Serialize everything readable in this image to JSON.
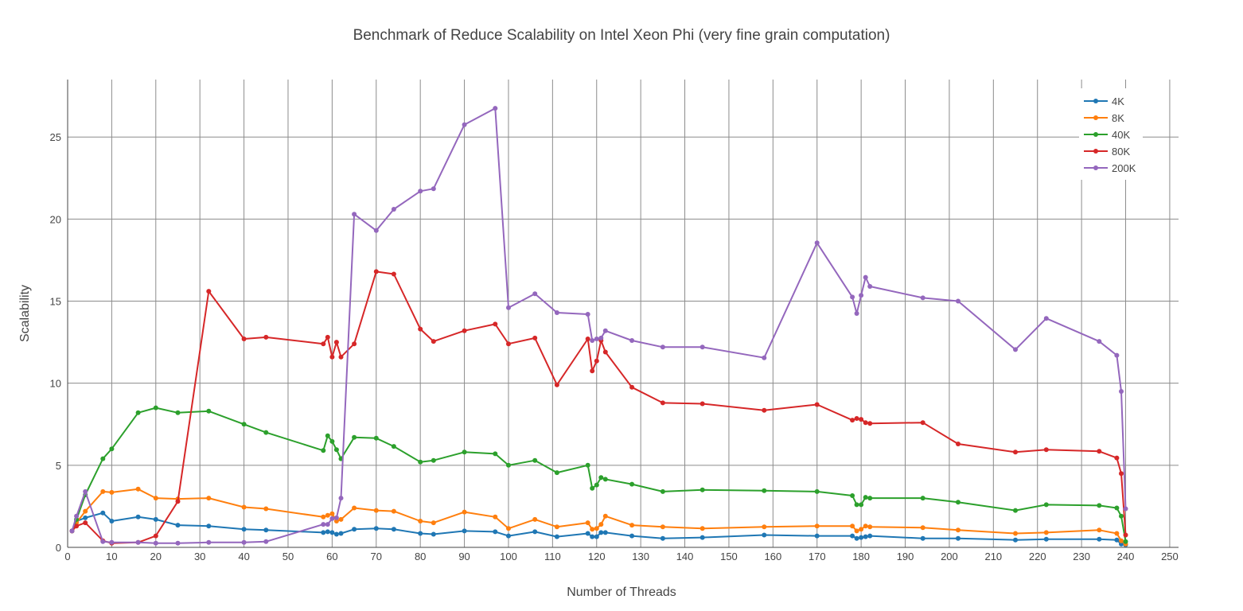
{
  "chart_data": {
    "type": "line",
    "title": "Benchmark of Reduce Scalability on Intel Xeon Phi (very fine grain computation)",
    "xlabel": "Number of Threads",
    "ylabel": "Scalability",
    "xlim": [
      0,
      252
    ],
    "ylim": [
      0,
      28.5
    ],
    "xticks": [
      0,
      10,
      20,
      30,
      40,
      50,
      60,
      70,
      80,
      90,
      100,
      110,
      120,
      130,
      140,
      150,
      160,
      170,
      180,
      190,
      200,
      210,
      220,
      230,
      240,
      250
    ],
    "yticks": [
      0,
      5,
      10,
      15,
      20,
      25
    ],
    "grid": true,
    "legend_position": "top-right",
    "series": [
      {
        "name": "4K",
        "color": "#1f77b4",
        "points": [
          [
            1,
            1
          ],
          [
            2,
            1.6
          ],
          [
            4,
            1.8
          ],
          [
            8,
            2.1
          ],
          [
            10,
            1.6
          ],
          [
            16,
            1.85
          ],
          [
            20,
            1.7
          ],
          [
            25,
            1.35
          ],
          [
            32,
            1.3
          ],
          [
            40,
            1.1
          ],
          [
            45,
            1.05
          ],
          [
            58,
            0.9
          ],
          [
            59,
            0.95
          ],
          [
            60,
            0.9
          ],
          [
            61,
            0.8
          ],
          [
            62,
            0.85
          ],
          [
            65,
            1.1
          ],
          [
            70,
            1.15
          ],
          [
            74,
            1.1
          ],
          [
            80,
            0.85
          ],
          [
            83,
            0.8
          ],
          [
            90,
            1.0
          ],
          [
            97,
            0.95
          ],
          [
            100,
            0.7
          ],
          [
            106,
            0.95
          ],
          [
            111,
            0.65
          ],
          [
            118,
            0.85
          ],
          [
            119,
            0.65
          ],
          [
            120,
            0.65
          ],
          [
            121,
            0.9
          ],
          [
            122,
            0.9
          ],
          [
            128,
            0.7
          ],
          [
            135,
            0.55
          ],
          [
            144,
            0.6
          ],
          [
            158,
            0.75
          ],
          [
            170,
            0.7
          ],
          [
            178,
            0.7
          ],
          [
            179,
            0.55
          ],
          [
            180,
            0.6
          ],
          [
            181,
            0.65
          ],
          [
            182,
            0.7
          ],
          [
            194,
            0.55
          ],
          [
            202,
            0.55
          ],
          [
            215,
            0.45
          ],
          [
            222,
            0.5
          ],
          [
            234,
            0.5
          ],
          [
            238,
            0.45
          ],
          [
            239,
            0.2
          ],
          [
            240,
            0.15
          ]
        ]
      },
      {
        "name": "8K",
        "color": "#ff7f0e",
        "points": [
          [
            1,
            1
          ],
          [
            2,
            1.5
          ],
          [
            4,
            2.2
          ],
          [
            8,
            3.4
          ],
          [
            10,
            3.35
          ],
          [
            16,
            3.55
          ],
          [
            20,
            3.0
          ],
          [
            25,
            2.95
          ],
          [
            32,
            3.0
          ],
          [
            40,
            2.45
          ],
          [
            45,
            2.35
          ],
          [
            58,
            1.85
          ],
          [
            59,
            1.95
          ],
          [
            60,
            2.05
          ],
          [
            61,
            1.6
          ],
          [
            62,
            1.7
          ],
          [
            65,
            2.4
          ],
          [
            70,
            2.25
          ],
          [
            74,
            2.2
          ],
          [
            80,
            1.6
          ],
          [
            83,
            1.5
          ],
          [
            90,
            2.15
          ],
          [
            97,
            1.85
          ],
          [
            100,
            1.15
          ],
          [
            106,
            1.7
          ],
          [
            111,
            1.25
          ],
          [
            118,
            1.5
          ],
          [
            119,
            1.1
          ],
          [
            120,
            1.15
          ],
          [
            121,
            1.4
          ],
          [
            122,
            1.9
          ],
          [
            128,
            1.35
          ],
          [
            135,
            1.25
          ],
          [
            144,
            1.15
          ],
          [
            158,
            1.25
          ],
          [
            170,
            1.3
          ],
          [
            178,
            1.3
          ],
          [
            179,
            1.0
          ],
          [
            180,
            1.1
          ],
          [
            181,
            1.3
          ],
          [
            182,
            1.25
          ],
          [
            194,
            1.2
          ],
          [
            202,
            1.05
          ],
          [
            215,
            0.85
          ],
          [
            222,
            0.9
          ],
          [
            234,
            1.05
          ],
          [
            238,
            0.85
          ],
          [
            239,
            0.4
          ],
          [
            240,
            0.2
          ]
        ]
      },
      {
        "name": "40K",
        "color": "#2ca02c",
        "points": [
          [
            1,
            1
          ],
          [
            2,
            1.7
          ],
          [
            4,
            3.2
          ],
          [
            8,
            5.4
          ],
          [
            10,
            6.0
          ],
          [
            16,
            8.2
          ],
          [
            20,
            8.5
          ],
          [
            25,
            8.2
          ],
          [
            32,
            8.3
          ],
          [
            40,
            7.5
          ],
          [
            45,
            7.0
          ],
          [
            58,
            5.9
          ],
          [
            59,
            6.8
          ],
          [
            60,
            6.45
          ],
          [
            61,
            5.95
          ],
          [
            62,
            5.4
          ],
          [
            65,
            6.7
          ],
          [
            70,
            6.65
          ],
          [
            74,
            6.15
          ],
          [
            80,
            5.2
          ],
          [
            83,
            5.3
          ],
          [
            90,
            5.8
          ],
          [
            97,
            5.7
          ],
          [
            100,
            5.0
          ],
          [
            106,
            5.3
          ],
          [
            111,
            4.55
          ],
          [
            118,
            5.0
          ],
          [
            119,
            3.6
          ],
          [
            120,
            3.8
          ],
          [
            121,
            4.25
          ],
          [
            122,
            4.15
          ],
          [
            128,
            3.85
          ],
          [
            135,
            3.4
          ],
          [
            144,
            3.5
          ],
          [
            158,
            3.45
          ],
          [
            170,
            3.4
          ],
          [
            178,
            3.15
          ],
          [
            179,
            2.6
          ],
          [
            180,
            2.6
          ],
          [
            181,
            3.05
          ],
          [
            182,
            3.0
          ],
          [
            194,
            3.0
          ],
          [
            202,
            2.75
          ],
          [
            215,
            2.25
          ],
          [
            222,
            2.6
          ],
          [
            234,
            2.55
          ],
          [
            238,
            2.4
          ],
          [
            239,
            1.9
          ],
          [
            240,
            0.35
          ]
        ]
      },
      {
        "name": "80K",
        "color": "#d62728",
        "points": [
          [
            1,
            1
          ],
          [
            2,
            1.3
          ],
          [
            4,
            1.5
          ],
          [
            8,
            0.4
          ],
          [
            10,
            0.25
          ],
          [
            16,
            0.3
          ],
          [
            20,
            0.7
          ],
          [
            25,
            2.8
          ],
          [
            32,
            15.6
          ],
          [
            40,
            12.7
          ],
          [
            45,
            12.8
          ],
          [
            58,
            12.4
          ],
          [
            59,
            12.8
          ],
          [
            60,
            11.6
          ],
          [
            61,
            12.5
          ],
          [
            62,
            11.6
          ],
          [
            65,
            12.4
          ],
          [
            70,
            16.8
          ],
          [
            74,
            16.65
          ],
          [
            80,
            13.3
          ],
          [
            83,
            12.55
          ],
          [
            90,
            13.2
          ],
          [
            97,
            13.6
          ],
          [
            100,
            12.4
          ],
          [
            106,
            12.75
          ],
          [
            111,
            9.9
          ],
          [
            118,
            12.7
          ],
          [
            119,
            10.75
          ],
          [
            120,
            11.35
          ],
          [
            121,
            12.6
          ],
          [
            122,
            11.9
          ],
          [
            128,
            9.75
          ],
          [
            135,
            8.8
          ],
          [
            144,
            8.75
          ],
          [
            158,
            8.35
          ],
          [
            170,
            8.7
          ],
          [
            178,
            7.75
          ],
          [
            179,
            7.85
          ],
          [
            180,
            7.8
          ],
          [
            181,
            7.6
          ],
          [
            182,
            7.55
          ],
          [
            194,
            7.6
          ],
          [
            202,
            6.3
          ],
          [
            215,
            5.8
          ],
          [
            222,
            5.95
          ],
          [
            234,
            5.85
          ],
          [
            238,
            5.45
          ],
          [
            239,
            4.5
          ],
          [
            240,
            0.75
          ]
        ]
      },
      {
        "name": "200K",
        "color": "#9467bd",
        "points": [
          [
            1,
            1
          ],
          [
            2,
            1.9
          ],
          [
            4,
            3.4
          ],
          [
            8,
            0.35
          ],
          [
            10,
            0.3
          ],
          [
            16,
            0.3
          ],
          [
            20,
            0.25
          ],
          [
            25,
            0.25
          ],
          [
            32,
            0.3
          ],
          [
            40,
            0.3
          ],
          [
            45,
            0.35
          ],
          [
            58,
            1.4
          ],
          [
            59,
            1.4
          ],
          [
            60,
            1.75
          ],
          [
            61,
            1.8
          ],
          [
            62,
            3.0
          ],
          [
            65,
            20.3
          ],
          [
            70,
            19.3
          ],
          [
            74,
            20.6
          ],
          [
            80,
            21.7
          ],
          [
            83,
            21.85
          ],
          [
            90,
            25.75
          ],
          [
            97,
            26.75
          ],
          [
            100,
            14.6
          ],
          [
            106,
            15.45
          ],
          [
            111,
            14.3
          ],
          [
            118,
            14.2
          ],
          [
            119,
            12.6
          ],
          [
            120,
            12.7
          ],
          [
            121,
            12.75
          ],
          [
            122,
            13.2
          ],
          [
            128,
            12.6
          ],
          [
            135,
            12.2
          ],
          [
            144,
            12.2
          ],
          [
            158,
            11.55
          ],
          [
            170,
            18.55
          ],
          [
            178,
            15.25
          ],
          [
            179,
            14.25
          ],
          [
            180,
            15.35
          ],
          [
            181,
            16.45
          ],
          [
            182,
            15.9
          ],
          [
            194,
            15.2
          ],
          [
            202,
            15.0
          ],
          [
            215,
            12.05
          ],
          [
            222,
            13.95
          ],
          [
            234,
            12.55
          ],
          [
            238,
            11.7
          ],
          [
            239,
            9.5
          ],
          [
            240,
            2.35
          ]
        ]
      }
    ]
  }
}
